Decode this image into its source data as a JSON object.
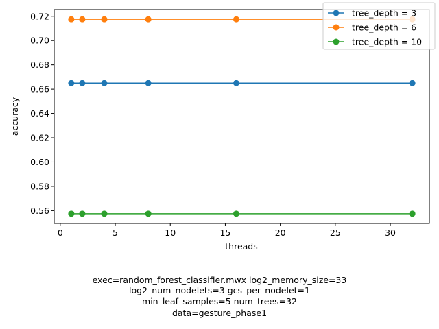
{
  "chart_data": {
    "type": "line",
    "xlabel": "threads",
    "ylabel": "accuracy",
    "xlim": [
      -0.55,
      33.55
    ],
    "ylim": [
      0.5495,
      0.7255
    ],
    "xticks": [
      0,
      5,
      10,
      15,
      20,
      25,
      30
    ],
    "yticks": [
      0.56,
      0.58,
      0.6,
      0.62,
      0.64,
      0.66,
      0.68,
      0.7,
      0.72
    ],
    "ytick_labels": [
      "0.56",
      "0.58",
      "0.60",
      "0.62",
      "0.64",
      "0.66",
      "0.68",
      "0.70",
      "0.72"
    ],
    "x": [
      1,
      2,
      4,
      8,
      16,
      32
    ],
    "legend_placement": "top-right",
    "grid": false,
    "series": [
      {
        "name": "tree_depth = 3",
        "color": "#1f77b4",
        "values": [
          0.665,
          0.665,
          0.665,
          0.665,
          0.665,
          0.665
        ]
      },
      {
        "name": "tree_depth = 6",
        "color": "#ff7f0e",
        "values": [
          0.7175,
          0.7175,
          0.7175,
          0.7175,
          0.7175,
          0.7175
        ]
      },
      {
        "name": "tree_depth = 10",
        "color": "#2ca02c",
        "values": [
          0.5575,
          0.5575,
          0.5575,
          0.5575,
          0.5575,
          0.5575
        ]
      }
    ],
    "annotation_lines": [
      "exec=random_forest_classifier.mwx   log2_memory_size=33",
      "log2_num_nodelets=3   gcs_per_nodelet=1",
      "min_leaf_samples=5   num_trees=32",
      "data=gesture_phase1"
    ]
  }
}
